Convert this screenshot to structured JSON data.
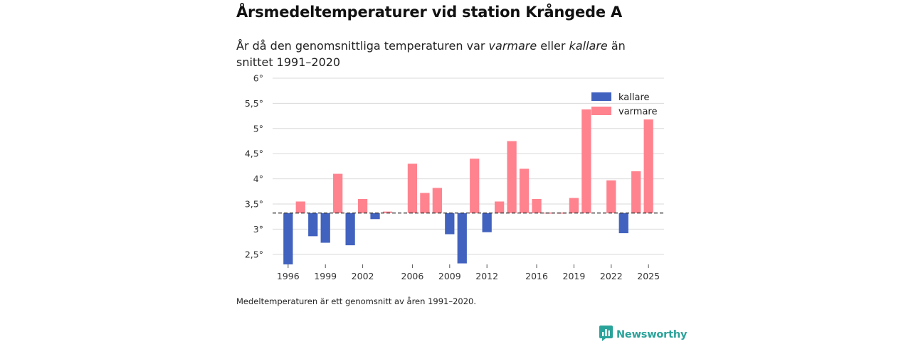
{
  "header": {
    "title": "Årsmedeltemperaturer vid station Krångede A",
    "subtitle_before": "År då den genomsnittliga temperaturen var ",
    "subtitle_warm": "varmare",
    "subtitle_mid": " eller ",
    "subtitle_cold": "kallare",
    "subtitle_after": " än snittet 1991–2020"
  },
  "footer": {
    "note": "Medeltemperaturen är ett genomsnitt av åren 1991–2020.",
    "brand": "Newsworthy"
  },
  "colors": {
    "cold": "#4262bf",
    "warm": "#ff838f",
    "baseline": "#333333",
    "grid": "#d9d9d9",
    "brand": "#2aa39a"
  },
  "chart_data": {
    "type": "bar",
    "title": "Årsmedeltemperaturer vid station Krångede A",
    "baseline": 3.32,
    "ylim": [
      2.3,
      6.0
    ],
    "yticks": [
      2.5,
      3,
      3.5,
      4,
      4.5,
      5,
      5.5,
      6
    ],
    "ytick_labels": [
      "2,5°",
      "3°",
      "3,5°",
      "4°",
      "4,5°",
      "5°",
      "5,5°",
      "6°"
    ],
    "xticks": [
      1996,
      1999,
      2002,
      2006,
      2009,
      2012,
      2016,
      2019,
      2022,
      2025
    ],
    "x_range": [
      1994.75,
      2026.25
    ],
    "legend": [
      {
        "key": "cold",
        "label": "kallare"
      },
      {
        "key": "warm",
        "label": "varmare"
      }
    ],
    "legend_position": "top-right",
    "years": [
      1996,
      1997,
      1998,
      1999,
      2000,
      2001,
      2002,
      2003,
      2004,
      2005,
      2006,
      2007,
      2008,
      2009,
      2010,
      2011,
      2012,
      2013,
      2014,
      2015,
      2016,
      2017,
      2018,
      2019,
      2020,
      2021,
      2022,
      2023,
      2024,
      2025
    ],
    "values": [
      2.3,
      3.55,
      2.86,
      2.73,
      4.1,
      2.68,
      3.6,
      3.2,
      3.35,
      null,
      4.3,
      3.72,
      3.82,
      2.9,
      2.32,
      4.4,
      2.94,
      3.55,
      4.75,
      4.2,
      3.6,
      3.33,
      3.33,
      3.62,
      5.38,
      null,
      3.97,
      2.92,
      4.15,
      5.18
    ]
  }
}
